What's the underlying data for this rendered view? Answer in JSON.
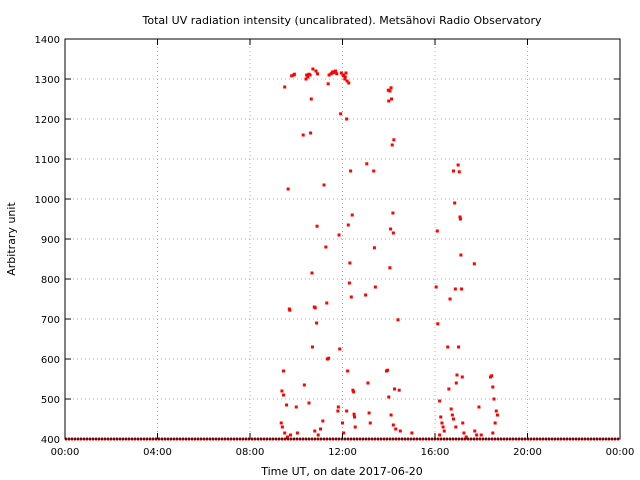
{
  "chart_data": {
    "type": "scatter",
    "title": "Total UV radiation intensity (uncalibrated). Metsähovi Radio Observatory",
    "xlabel": "Time UT, on date 2017-06-20",
    "ylabel": "Arbitrary unit",
    "xlim": [
      0,
      24
    ],
    "ylim": [
      400,
      1400
    ],
    "x_ticks": [
      {
        "value": 0,
        "label": "00:00"
      },
      {
        "value": 4,
        "label": "04:00"
      },
      {
        "value": 8,
        "label": "08:00"
      },
      {
        "value": 12,
        "label": "12:00"
      },
      {
        "value": 16,
        "label": "16:00"
      },
      {
        "value": 20,
        "label": "20:00"
      },
      {
        "value": 24,
        "label": "00:00"
      }
    ],
    "y_ticks": [
      {
        "value": 400,
        "label": "400"
      },
      {
        "value": 500,
        "label": "500"
      },
      {
        "value": 600,
        "label": "600"
      },
      {
        "value": 700,
        "label": "700"
      },
      {
        "value": 800,
        "label": "800"
      },
      {
        "value": 900,
        "label": "900"
      },
      {
        "value": 1000,
        "label": "1000"
      },
      {
        "value": 1100,
        "label": "1100"
      },
      {
        "value": 1200,
        "label": "1200"
      },
      {
        "value": 1300,
        "label": "1300"
      },
      {
        "value": 1400,
        "label": "1400"
      }
    ],
    "grid": true,
    "series": [
      {
        "color": "#ff0000",
        "baseline": {
          "y": 400,
          "x_range": [
            0,
            24
          ]
        },
        "points": [
          [
            9.5,
            1280
          ],
          [
            9.65,
            1025
          ],
          [
            9.7,
            725
          ],
          [
            9.72,
            722
          ],
          [
            9.45,
            570
          ],
          [
            9.38,
            520
          ],
          [
            9.45,
            510
          ],
          [
            9.58,
            485
          ],
          [
            9.35,
            440
          ],
          [
            9.4,
            430
          ],
          [
            9.5,
            415
          ],
          [
            9.62,
            405
          ],
          [
            9.75,
            410
          ],
          [
            9.8,
            1308
          ],
          [
            9.9,
            1310
          ],
          [
            9.92,
            1312
          ],
          [
            10.0,
            480
          ],
          [
            10.05,
            415
          ],
          [
            10.3,
            1160
          ],
          [
            10.35,
            535
          ],
          [
            10.42,
            1300
          ],
          [
            10.45,
            1310
          ],
          [
            10.5,
            1305
          ],
          [
            10.55,
            1312
          ],
          [
            10.6,
            1310
          ],
          [
            10.62,
            1165
          ],
          [
            10.65,
            1250
          ],
          [
            10.68,
            815
          ],
          [
            10.7,
            630
          ],
          [
            10.72,
            1325
          ],
          [
            10.78,
            730
          ],
          [
            10.82,
            728
          ],
          [
            10.85,
            1320
          ],
          [
            10.88,
            690
          ],
          [
            10.9,
            932
          ],
          [
            10.92,
            1313
          ],
          [
            10.55,
            490
          ],
          [
            10.8,
            420
          ],
          [
            10.95,
            410
          ],
          [
            11.05,
            425
          ],
          [
            11.15,
            445
          ],
          [
            11.2,
            1035
          ],
          [
            11.28,
            880
          ],
          [
            11.32,
            740
          ],
          [
            11.35,
            600
          ],
          [
            11.4,
            602
          ],
          [
            11.38,
            1288
          ],
          [
            11.42,
            1310
          ],
          [
            11.5,
            1313
          ],
          [
            11.55,
            1315
          ],
          [
            11.58,
            1318
          ],
          [
            11.62,
            1316
          ],
          [
            11.7,
            1320
          ],
          [
            11.75,
            1313
          ],
          [
            11.8,
            470
          ],
          [
            11.82,
            480
          ],
          [
            11.85,
            910
          ],
          [
            11.88,
            625
          ],
          [
            11.92,
            1213
          ],
          [
            11.95,
            1315
          ],
          [
            12.02,
            1310
          ],
          [
            12.05,
            1308
          ],
          [
            12.1,
            1300
          ],
          [
            12.12,
            1305
          ],
          [
            12.15,
            1315
          ],
          [
            12.18,
            1200
          ],
          [
            12.2,
            1295
          ],
          [
            12.25,
            935
          ],
          [
            12.27,
            1290
          ],
          [
            12.3,
            790
          ],
          [
            12.32,
            840
          ],
          [
            12.35,
            1070
          ],
          [
            12.38,
            755
          ],
          [
            12.42,
            960
          ],
          [
            12.45,
            522
          ],
          [
            12.48,
            518
          ],
          [
            12.5,
            462
          ],
          [
            12.52,
            455
          ],
          [
            12.55,
            430
          ],
          [
            12.22,
            570
          ],
          [
            12.18,
            470
          ],
          [
            12.0,
            440
          ],
          [
            12.05,
            415
          ],
          [
            13.0,
            760
          ],
          [
            13.05,
            1088
          ],
          [
            13.1,
            540
          ],
          [
            13.15,
            465
          ],
          [
            13.2,
            440
          ],
          [
            13.35,
            1070
          ],
          [
            13.38,
            878
          ],
          [
            13.42,
            780
          ],
          [
            13.9,
            570
          ],
          [
            13.95,
            572
          ],
          [
            13.98,
            1272
          ],
          [
            14.0,
            1245
          ],
          [
            14.05,
            1270
          ],
          [
            14.08,
            925
          ],
          [
            14.1,
            1278
          ],
          [
            14.12,
            1250
          ],
          [
            14.15,
            1135
          ],
          [
            14.18,
            965
          ],
          [
            14.2,
            915
          ],
          [
            14.22,
            1148
          ],
          [
            14.05,
            828
          ],
          [
            14.25,
            525
          ],
          [
            14.4,
            698
          ],
          [
            14.45,
            522
          ],
          [
            14.0,
            505
          ],
          [
            14.1,
            460
          ],
          [
            14.2,
            435
          ],
          [
            14.3,
            425
          ],
          [
            14.5,
            420
          ],
          [
            15.0,
            415
          ],
          [
            16.05,
            780
          ],
          [
            16.1,
            920
          ],
          [
            16.12,
            688
          ],
          [
            16.2,
            495
          ],
          [
            16.25,
            455
          ],
          [
            16.3,
            440
          ],
          [
            16.35,
            430
          ],
          [
            16.4,
            420
          ],
          [
            16.2,
            410
          ],
          [
            16.55,
            630
          ],
          [
            16.6,
            525
          ],
          [
            16.65,
            750
          ],
          [
            16.7,
            475
          ],
          [
            16.75,
            460
          ],
          [
            16.8,
            1070
          ],
          [
            16.85,
            990
          ],
          [
            16.88,
            775
          ],
          [
            16.92,
            540
          ],
          [
            16.95,
            560
          ],
          [
            17.0,
            1085
          ],
          [
            17.02,
            630
          ],
          [
            17.05,
            1068
          ],
          [
            17.08,
            955
          ],
          [
            17.1,
            950
          ],
          [
            17.12,
            860
          ],
          [
            17.15,
            775
          ],
          [
            17.18,
            555
          ],
          [
            16.8,
            450
          ],
          [
            16.9,
            430
          ],
          [
            17.2,
            440
          ],
          [
            17.25,
            415
          ],
          [
            17.35,
            405
          ],
          [
            17.7,
            838
          ],
          [
            17.72,
            420
          ],
          [
            17.8,
            410
          ],
          [
            17.9,
            480
          ],
          [
            18.0,
            410
          ],
          [
            18.4,
            555
          ],
          [
            18.45,
            558
          ],
          [
            18.5,
            530
          ],
          [
            18.55,
            500
          ],
          [
            18.6,
            440
          ],
          [
            18.65,
            470
          ],
          [
            18.7,
            460
          ],
          [
            18.5,
            415
          ]
        ]
      }
    ]
  }
}
